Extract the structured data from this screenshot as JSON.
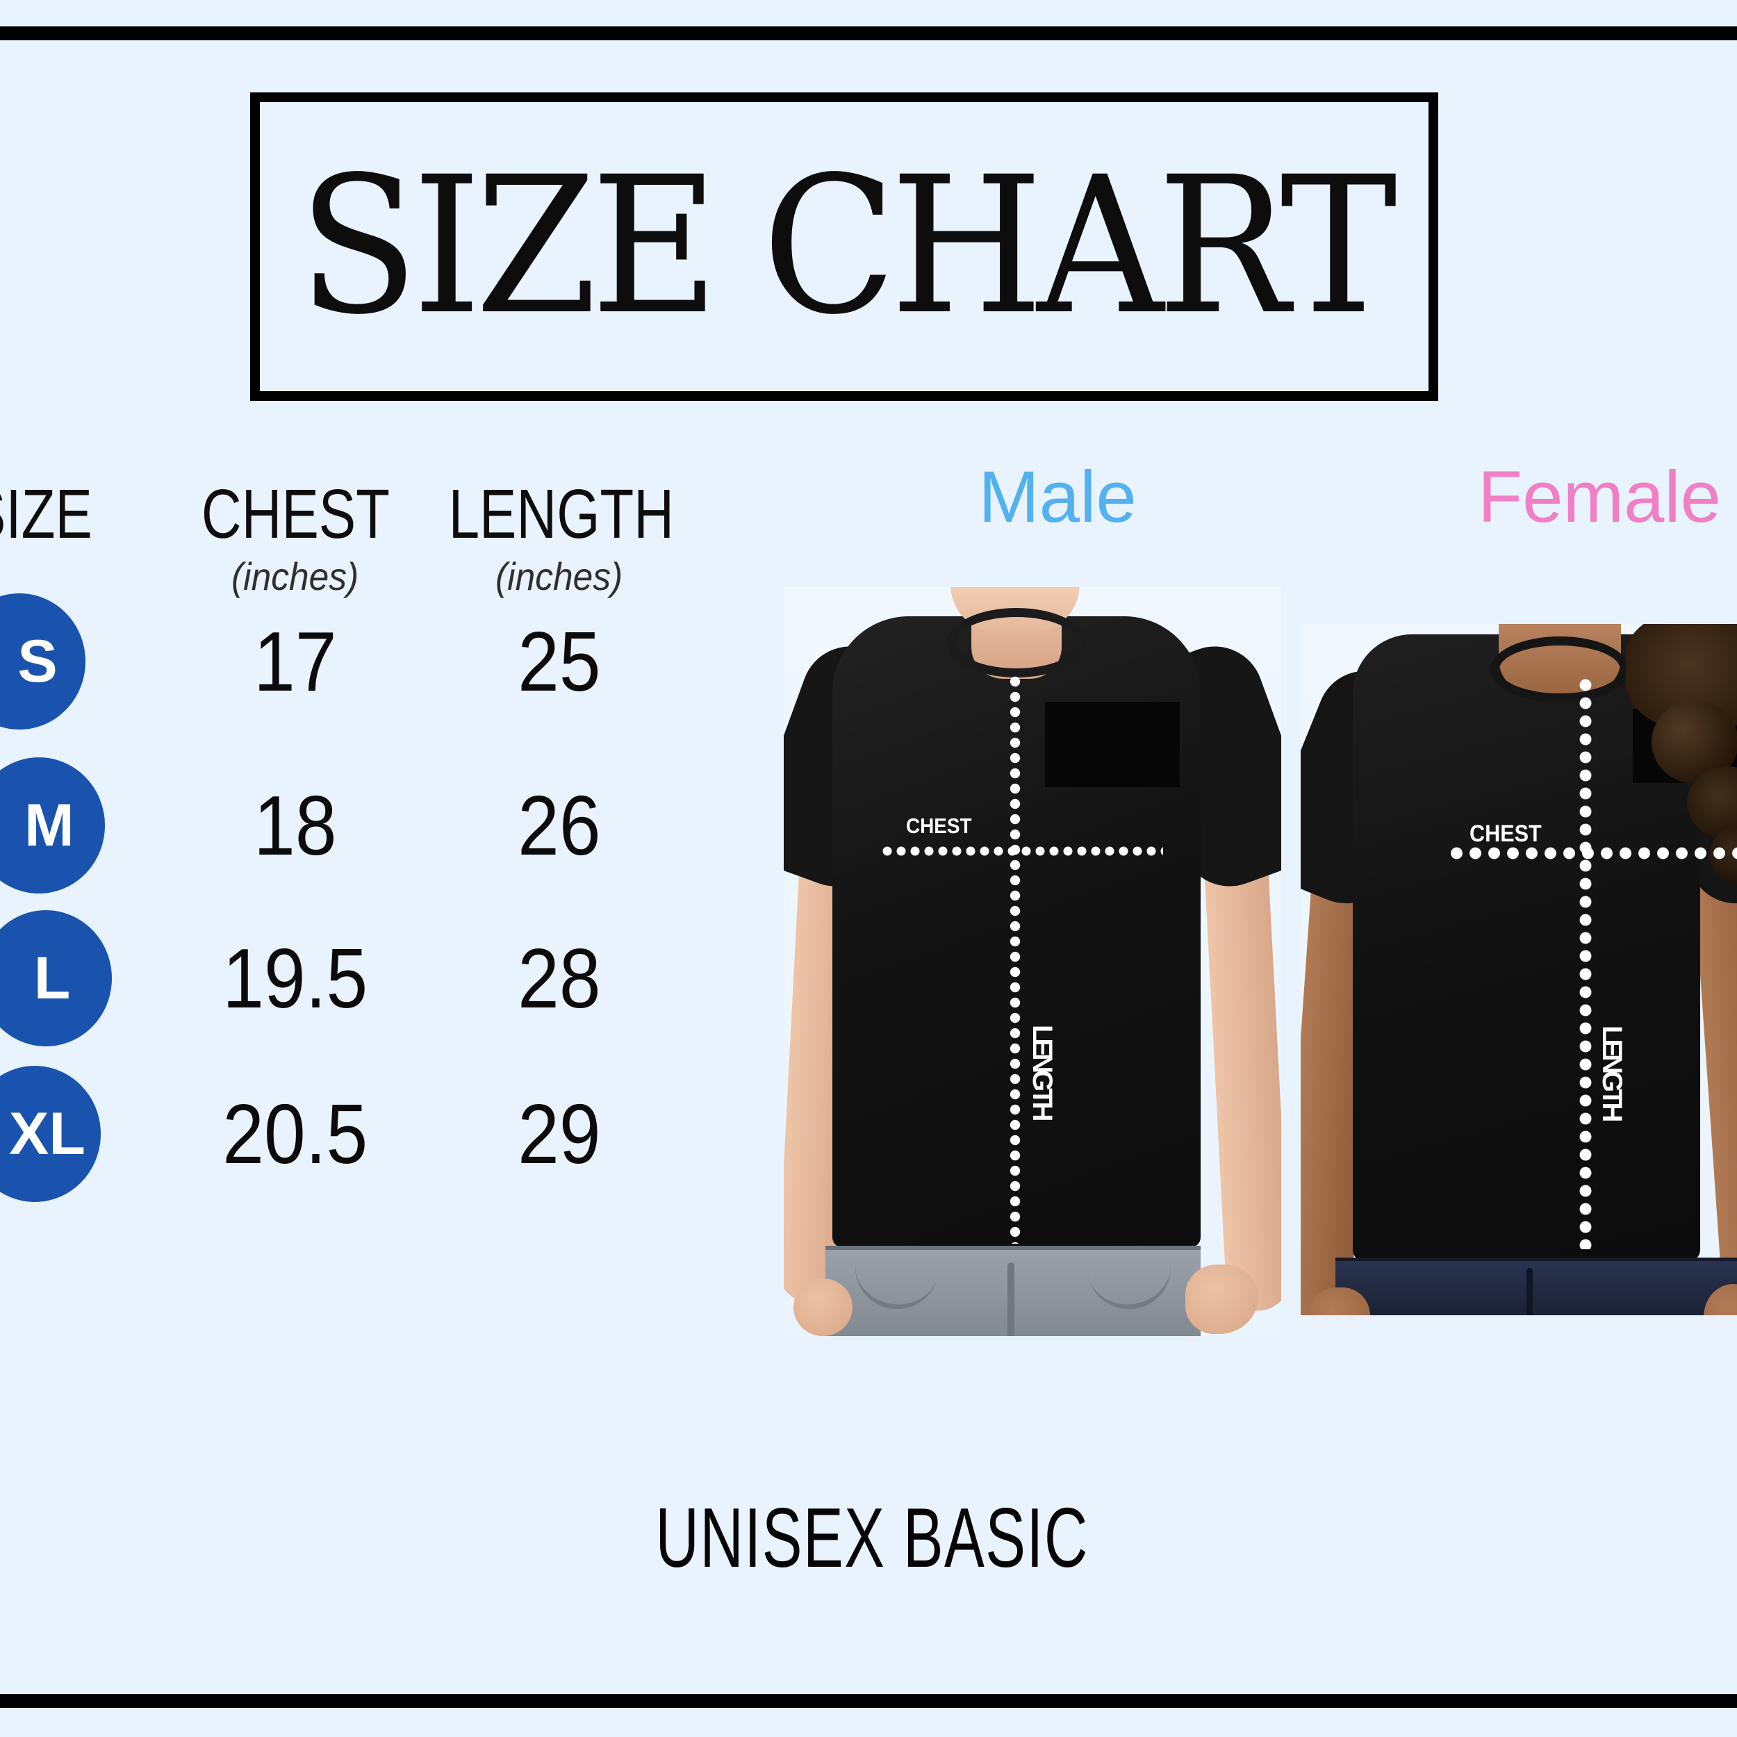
{
  "title": {
    "text": "SIZE CHART"
  },
  "colors": {
    "background": "#e8f3fd",
    "frame": "#000000",
    "badge_blue": "#1a53ad",
    "male_label": "#53b1f0",
    "female_label": "#f07fc5"
  },
  "table": {
    "headers": [
      {
        "label": "SIZE",
        "sub": ""
      },
      {
        "label": "CHEST",
        "sub": "(inches)"
      },
      {
        "label": "LENGTH",
        "sub": "(inches)"
      }
    ],
    "rows": [
      {
        "size": "S",
        "chest": "17",
        "length": "25"
      },
      {
        "size": "M",
        "chest": "18",
        "length": "26"
      },
      {
        "size": "L",
        "chest": "19.5",
        "length": "28"
      },
      {
        "size": "XL",
        "chest": "20.5",
        "length": "29"
      }
    ]
  },
  "models": {
    "male": {
      "label": "Male",
      "chest_label": "CHEST",
      "length_label": "LENGTH"
    },
    "female": {
      "label": "Female",
      "chest_label": "CHEST",
      "length_label": "LENGTH"
    }
  },
  "footer": {
    "text": "UNISEX BASIC"
  },
  "chart_data": {
    "type": "table",
    "title": "SIZE CHART",
    "columns": [
      "SIZE",
      "CHEST (inches)",
      "LENGTH (inches)"
    ],
    "rows": [
      [
        "S",
        17,
        25
      ],
      [
        "M",
        18,
        26
      ],
      [
        "L",
        19.5,
        28
      ],
      [
        "XL",
        20.5,
        29
      ]
    ],
    "models": [
      "Male",
      "Female"
    ],
    "notes": "UNISEX BASIC"
  }
}
